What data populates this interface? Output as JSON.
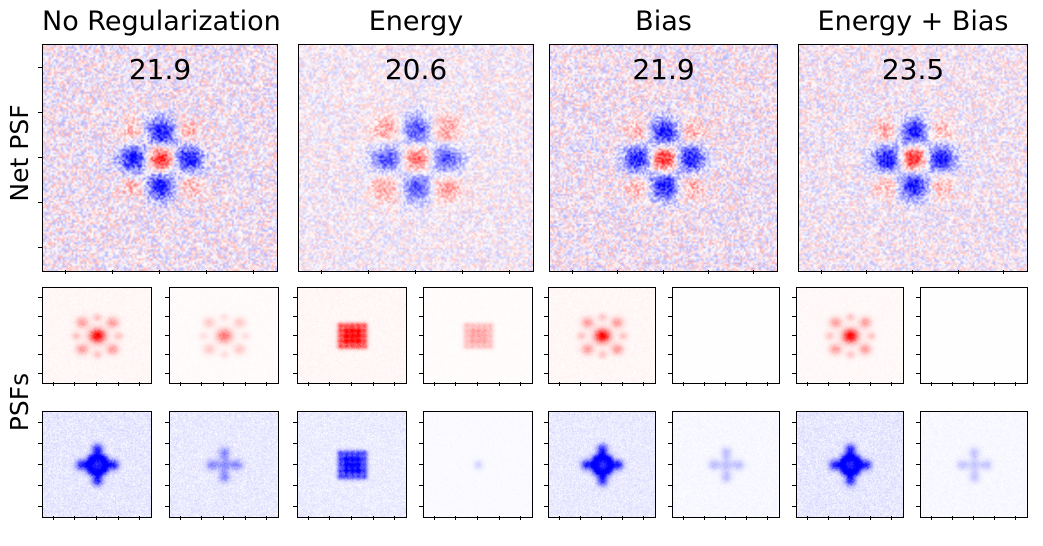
{
  "figure": {
    "column_titles": [
      "No Regularization",
      "Energy",
      "Bias",
      "Energy + Bias"
    ],
    "row_labels": {
      "net_psf": "Net PSF",
      "psfs": "PSFs"
    },
    "net_psf_scores": [
      "21.9",
      "20.6",
      "21.9",
      "23.5"
    ]
  },
  "colors": {
    "positive": "#ff0000",
    "negative": "#0000ff",
    "background": "#ffffff"
  },
  "panels": {
    "net_psf": [
      {
        "pattern": "cross",
        "noise": 0.3,
        "amp": 1.0
      },
      {
        "pattern": "cross-wide",
        "noise": 0.22,
        "amp": 0.85
      },
      {
        "pattern": "cross",
        "noise": 0.3,
        "amp": 1.0
      },
      {
        "pattern": "cross",
        "noise": 0.26,
        "amp": 1.0
      }
    ],
    "psfs_red": [
      {
        "pattern": "dot-cross",
        "noise": 0.1,
        "amp": 1.0
      },
      {
        "pattern": "dot-cross-faint",
        "noise": 0.05,
        "amp": 0.55
      },
      {
        "pattern": "grid",
        "noise": 0.1,
        "amp": 1.0
      },
      {
        "pattern": "grid-faint",
        "noise": 0.04,
        "amp": 0.35
      },
      {
        "pattern": "dot-cross",
        "noise": 0.1,
        "amp": 1.0
      },
      {
        "pattern": "empty",
        "noise": 0.01,
        "amp": 0.0
      },
      {
        "pattern": "dot-cross",
        "noise": 0.08,
        "amp": 1.0
      },
      {
        "pattern": "empty",
        "noise": 0.01,
        "amp": 0.0
      }
    ],
    "psfs_blue": [
      {
        "pattern": "ring-cross",
        "noise": 0.2,
        "amp": 1.0
      },
      {
        "pattern": "cross-faint",
        "noise": 0.18,
        "amp": 0.6
      },
      {
        "pattern": "grid",
        "noise": 0.16,
        "amp": 1.0
      },
      {
        "pattern": "dot-faint",
        "noise": 0.04,
        "amp": 0.25
      },
      {
        "pattern": "ring-cross",
        "noise": 0.18,
        "amp": 1.0
      },
      {
        "pattern": "cross-faint",
        "noise": 0.06,
        "amp": 0.35
      },
      {
        "pattern": "ring-cross",
        "noise": 0.2,
        "amp": 1.0
      },
      {
        "pattern": "cross-faint",
        "noise": 0.06,
        "amp": 0.3
      }
    ]
  }
}
